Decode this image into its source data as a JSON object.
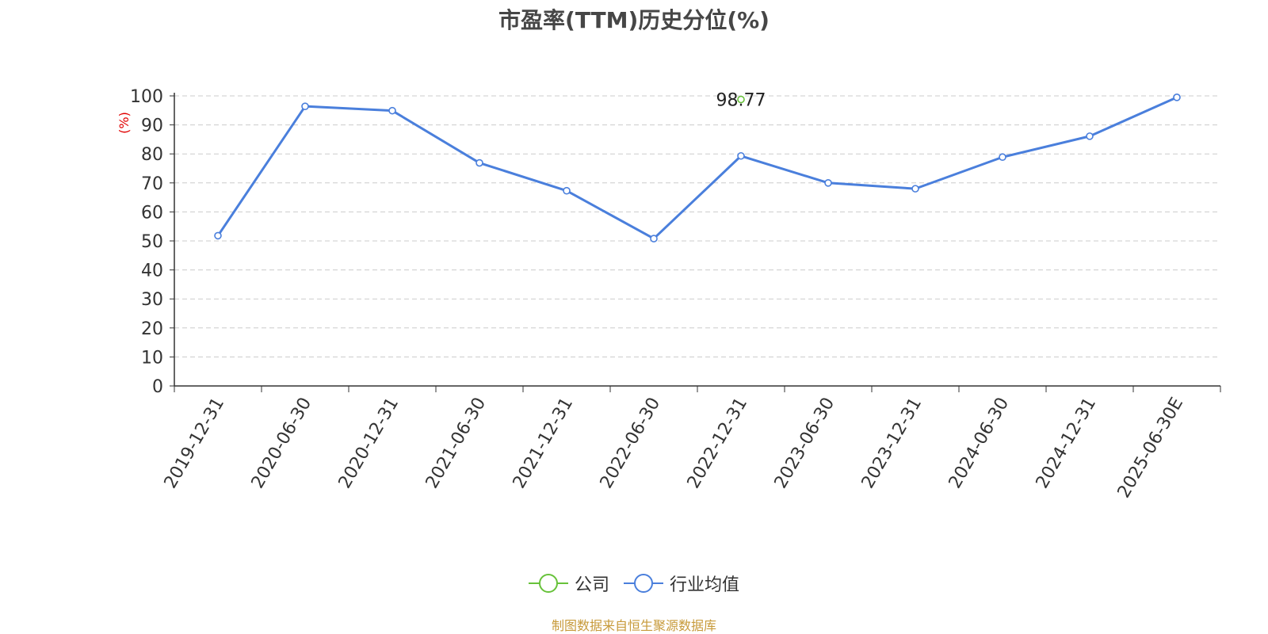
{
  "chart_data": {
    "type": "line",
    "title": "市盈率(TTM)历史分位(%)",
    "ylabel": "(%)",
    "xlabel": "",
    "ylim": [
      0,
      100
    ],
    "yticks": [
      0,
      10,
      20,
      30,
      40,
      50,
      60,
      70,
      80,
      90,
      100
    ],
    "categories": [
      "2019-12-31",
      "2020-06-30",
      "2020-12-31",
      "2021-06-30",
      "2021-12-31",
      "2022-06-30",
      "2022-12-31",
      "2023-06-30",
      "2023-12-31",
      "2024-06-30",
      "2024-12-31",
      "2025-06-30E"
    ],
    "grid": "horizontal-dashed",
    "legend_position": "bottom",
    "series": [
      {
        "name": "公司",
        "color": "#67c23a",
        "values": [
          null,
          null,
          null,
          null,
          null,
          null,
          98.77,
          null,
          null,
          null,
          null,
          null
        ],
        "data_labels": [
          null,
          null,
          null,
          null,
          null,
          null,
          "98.77",
          null,
          null,
          null,
          null,
          null
        ]
      },
      {
        "name": "行业均值",
        "color": "#4a7fdc",
        "values": [
          51.8,
          96.4,
          94.9,
          76.9,
          67.3,
          50.8,
          79.3,
          70.0,
          68.0,
          78.9,
          86.1,
          99.5
        ]
      }
    ]
  },
  "source_note": "制图数据来自恒生聚源数据库"
}
